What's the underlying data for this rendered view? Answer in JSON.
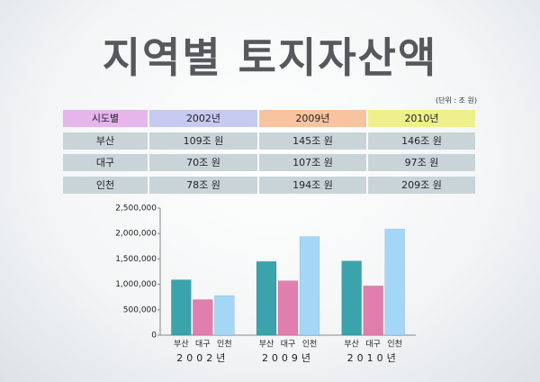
{
  "title": "지역별 토지자산액",
  "unit": "(단위 : 조 원)",
  "table": {
    "header": [
      "시도별",
      "2002년",
      "2009년",
      "2010년"
    ],
    "rows": [
      [
        "부산",
        "109조 원",
        "145조 원",
        "146조 원"
      ],
      [
        "대구",
        "70조 원",
        "107조 원",
        "97조 원"
      ],
      [
        "인천",
        "78조 원",
        "194조 원",
        "209조 원"
      ]
    ]
  },
  "chart_data": {
    "type": "bar",
    "categories": [
      "2002년",
      "2009년",
      "2010년"
    ],
    "series": [
      {
        "name": "부산",
        "color": "#3ba3ab",
        "values": [
          1090000,
          1450000,
          1460000
        ]
      },
      {
        "name": "대구",
        "color": "#e07fae",
        "values": [
          700000,
          1070000,
          970000
        ]
      },
      {
        "name": "인천",
        "color": "#a4d6f6",
        "values": [
          780000,
          1940000,
          2090000
        ]
      }
    ],
    "ylim": [
      0,
      2500000
    ],
    "yticks": [
      0,
      {
        "value": 500000,
        "label": "500,000"
      },
      {
        "value": 1000000,
        "label": "1,000,000"
      },
      {
        "value": 1500000,
        "label": "1,500,000"
      },
      {
        "value": 2000000,
        "label": "2,000,000"
      },
      {
        "value": 2500000,
        "label": "2,500,000"
      }
    ]
  }
}
